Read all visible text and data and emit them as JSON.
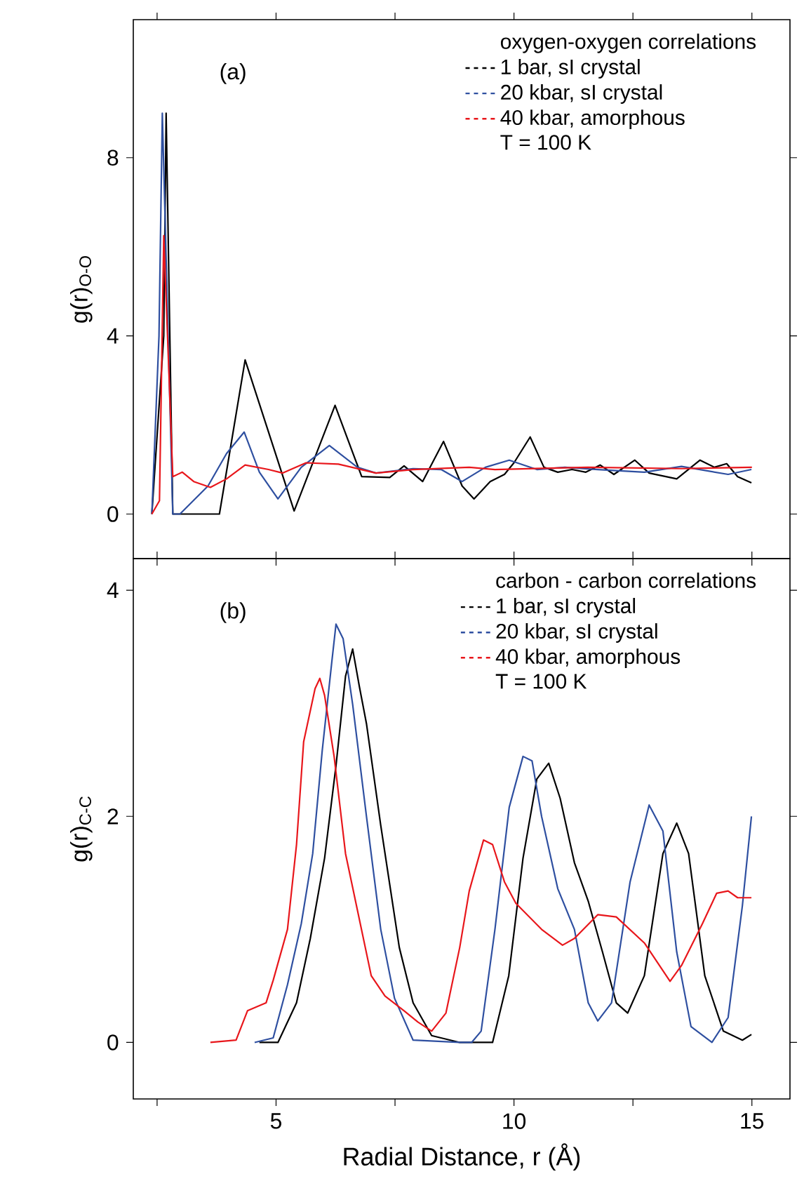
{
  "chart_data": [
    {
      "type": "line",
      "ylabel": "g(r)$_{O-O}$",
      "legend_title": "oxygen-oxygen correlations",
      "legend": "top right",
      "tick_labels": "y",
      "line_style": "solid",
      "annotations": [
        "(a)",
        "T = 100 K"
      ],
      "xlim": [
        2.0,
        15.8
      ],
      "ylim": [
        -1.0,
        11.1
      ],
      "xticks": [
        {
          "value": 2.5,
          "label": null
        },
        5,
        {
          "value": 7.5,
          "label": null
        },
        10,
        {
          "value": 12.5,
          "label": null
        },
        15
      ],
      "yticks": [
        0,
        4,
        8
      ],
      "series": [
        {
          "name": "1 bar, sI crystal",
          "color": "#000000",
          "x": [
            2.39,
            2.64,
            2.69,
            2.83,
            3.81,
            4.35,
            5.38,
            6.24,
            6.8,
            7.39,
            7.69,
            8.08,
            8.52,
            8.91,
            9.16,
            9.5,
            9.8,
            10.0,
            10.34,
            10.63,
            10.92,
            11.22,
            11.51,
            11.81,
            12.1,
            12.54,
            12.84,
            13.42,
            13.91,
            14.21,
            14.47,
            14.7,
            14.99
          ],
          "values": [
            0,
            4.0,
            9.0,
            0,
            0,
            3.46,
            0.07,
            2.44,
            0.84,
            0.82,
            1.08,
            0.73,
            1.63,
            0.63,
            0.34,
            0.73,
            0.89,
            1.15,
            1.73,
            1.05,
            0.94,
            1.0,
            0.94,
            1.1,
            0.89,
            1.21,
            0.92,
            0.79,
            1.21,
            1.05,
            1.13,
            0.84,
            0.7
          ]
        },
        {
          "name": "20 kbar, sI crystal",
          "color": "#2e4fa0",
          "x": [
            2.39,
            2.54,
            2.61,
            2.83,
            2.98,
            3.57,
            3.96,
            4.33,
            4.65,
            5.04,
            5.53,
            6.12,
            6.71,
            7.1,
            7.88,
            8.47,
            8.91,
            9.4,
            9.9,
            10.48,
            11.07,
            11.76,
            12.74,
            13.52,
            14.5,
            14.99
          ],
          "values": [
            0,
            4.0,
            9.0,
            0,
            0,
            0.63,
            1.36,
            1.84,
            0.94,
            0.34,
            1.05,
            1.54,
            1.05,
            0.92,
            1.02,
            1.0,
            0.73,
            1.05,
            1.21,
            1.0,
            1.05,
            1.0,
            0.94,
            1.07,
            0.89,
            1.0
          ]
        },
        {
          "name": "40 kbar, amorphous",
          "color": "#e8161b",
          "x": [
            2.39,
            2.55,
            2.64,
            2.83,
            3.03,
            3.27,
            3.62,
            3.96,
            4.35,
            4.84,
            5.14,
            5.63,
            6.31,
            7.1,
            7.88,
            9.06,
            9.6,
            11.56,
            13.52,
            15.0
          ],
          "values": [
            0,
            0.3,
            6.25,
            0.84,
            0.94,
            0.73,
            0.6,
            0.79,
            1.1,
            1.0,
            0.92,
            1.15,
            1.12,
            0.92,
            1.0,
            1.05,
            1.0,
            1.05,
            1.02,
            1.05
          ]
        }
      ]
    },
    {
      "type": "line",
      "xlabel": "Radial Distance, r (Å)",
      "ylabel": "g(r)$_{C-C}$",
      "legend_title": "carbon - carbon correlations",
      "legend": "top right",
      "line_style": "solid",
      "annotations": [
        "(b)",
        "T = 100 K"
      ],
      "xlim": [
        2.0,
        15.8
      ],
      "ylim": [
        -0.5,
        4.28
      ],
      "xticks": [
        {
          "value": 2.5,
          "label": null
        },
        5,
        {
          "value": 7.5,
          "label": null
        },
        10,
        {
          "value": 12.5,
          "label": null
        },
        15
      ],
      "yticks": [
        0,
        2,
        4
      ],
      "series": [
        {
          "name": "1 bar, sI crystal",
          "color": "#000000",
          "x": [
            4.65,
            5.04,
            5.43,
            5.72,
            6.02,
            6.26,
            6.46,
            6.61,
            6.75,
            6.9,
            7.2,
            7.59,
            7.88,
            8.27,
            8.86,
            9.55,
            9.89,
            10.19,
            10.48,
            10.73,
            10.97,
            11.27,
            11.56,
            11.86,
            12.15,
            12.39,
            12.74,
            13.13,
            13.42,
            13.67,
            14.01,
            14.4,
            14.8,
            14.99
          ],
          "values": [
            0,
            0,
            0.35,
            0.92,
            1.63,
            2.45,
            3.24,
            3.48,
            3.15,
            2.82,
            1.92,
            0.84,
            0.35,
            0.06,
            0,
            0,
            0.59,
            1.63,
            2.33,
            2.47,
            2.16,
            1.59,
            1.25,
            0.8,
            0.35,
            0.26,
            0.59,
            1.67,
            1.94,
            1.67,
            0.59,
            0.1,
            0.02,
            0.07
          ]
        },
        {
          "name": "20 kbar, sI crystal",
          "color": "#2e4fa0",
          "x": [
            4.55,
            4.94,
            5.24,
            5.53,
            5.77,
            5.97,
            6.17,
            6.26,
            6.41,
            6.61,
            6.9,
            7.2,
            7.49,
            7.88,
            8.86,
            9.11,
            9.31,
            9.6,
            9.9,
            10.19,
            10.38,
            10.58,
            10.92,
            11.27,
            11.56,
            11.76,
            12.05,
            12.44,
            12.84,
            13.13,
            13.42,
            13.72,
            14.16,
            14.5,
            14.8,
            14.99
          ],
          "values": [
            0,
            0.04,
            0.51,
            1.05,
            1.67,
            2.58,
            3.36,
            3.7,
            3.57,
            2.99,
            2.0,
            1.0,
            0.39,
            0.02,
            0,
            0,
            0.1,
            1.0,
            2.08,
            2.53,
            2.49,
            2.0,
            1.36,
            1.0,
            0.35,
            0.19,
            0.35,
            1.42,
            2.1,
            1.87,
            0.8,
            0.14,
            0,
            0.22,
            1.21,
            2.0
          ]
        },
        {
          "name": "40 kbar, amorphous",
          "color": "#e8161b",
          "x": [
            3.62,
            4.16,
            4.4,
            4.79,
            4.94,
            5.24,
            5.43,
            5.58,
            5.82,
            5.92,
            6.02,
            6.22,
            6.46,
            6.71,
            7.0,
            7.29,
            7.69,
            7.98,
            8.27,
            8.57,
            8.86,
            9.06,
            9.36,
            9.55,
            9.8,
            10.04,
            10.58,
            11.02,
            11.27,
            11.76,
            12.15,
            12.74,
            13.28,
            13.52,
            13.96,
            14.26,
            14.5,
            14.7,
            14.99
          ],
          "values": [
            0,
            0.02,
            0.28,
            0.35,
            0.55,
            1.0,
            1.75,
            2.66,
            3.13,
            3.22,
            3.07,
            2.53,
            1.67,
            1.17,
            0.59,
            0.41,
            0.28,
            0.18,
            0.1,
            0.26,
            0.84,
            1.34,
            1.79,
            1.75,
            1.42,
            1.23,
            1.0,
            0.86,
            0.92,
            1.13,
            1.11,
            0.88,
            0.54,
            0.68,
            1.05,
            1.32,
            1.34,
            1.28,
            1.28
          ]
        }
      ]
    }
  ]
}
